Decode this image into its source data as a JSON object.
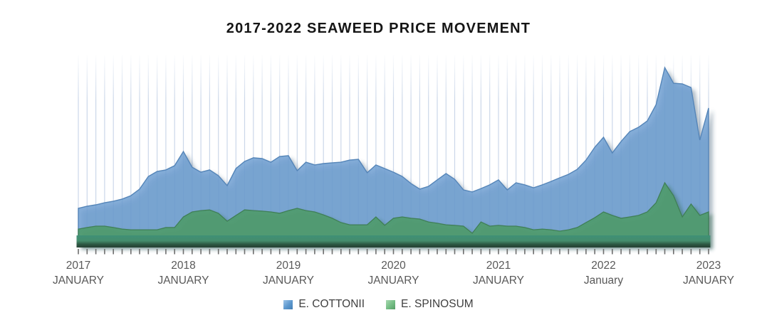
{
  "chart_data": {
    "type": "area",
    "style": "3d-area-overlapped",
    "title": "2017-2022 SEAWEED PRICE MOVEMENT",
    "x_axis": {
      "unit": "month",
      "start": "2017-01",
      "end": "2023-01",
      "n_points": 73,
      "ticks": [
        {
          "index": 0,
          "year": "2017",
          "month": "JANUARY"
        },
        {
          "index": 12,
          "year": "2018",
          "month": "JANUARY"
        },
        {
          "index": 24,
          "year": "2019",
          "month": "JANUARY"
        },
        {
          "index": 36,
          "year": "2020",
          "month": "JANUARY"
        },
        {
          "index": 48,
          "year": "2021",
          "month": "JANUARY"
        },
        {
          "index": 60,
          "year": "2022",
          "month": "January"
        },
        {
          "index": 72,
          "year": "2023",
          "month": "JANUARY"
        }
      ]
    },
    "y_axis": {
      "visible": false,
      "ylim": [
        0,
        100
      ],
      "note": "no value axis shown; values are relative price index estimated from pixel heights"
    },
    "gridlines": {
      "vertical": "monthly",
      "horizontal": false
    },
    "legend": {
      "position": "bottom",
      "items": [
        "E. COTTONII",
        "E. SPINOSUM"
      ]
    },
    "series": [
      {
        "name": "E. COTTONII",
        "color": "#6D9DD1",
        "values": [
          19.3,
          20.4,
          21.1,
          22.2,
          23,
          24.1,
          25.9,
          29.3,
          35.9,
          38.5,
          39.3,
          41.5,
          48.9,
          40.7,
          38.1,
          39.3,
          36.3,
          31.1,
          40,
          43.7,
          45.6,
          45.2,
          43.3,
          46.3,
          46.7,
          38.9,
          43.3,
          41.9,
          42.6,
          43,
          43.3,
          44.4,
          44.8,
          37.8,
          41.9,
          40,
          38.1,
          35.9,
          32.2,
          29.3,
          30.7,
          34.1,
          37.4,
          34.4,
          28.9,
          27.8,
          29.6,
          31.5,
          34.1,
          28.9,
          32.6,
          31.5,
          30,
          31.5,
          33.3,
          35.2,
          37,
          39.6,
          44.4,
          51.1,
          56.3,
          48.1,
          54.1,
          59.3,
          61.5,
          64.8,
          73.3,
          92.6,
          84.4,
          84.1,
          82.2,
          54.8,
          71.5
        ]
      },
      {
        "name": "E. SPINOSUM",
        "color": "#4F9B6E",
        "values": [
          8.5,
          9.3,
          10,
          10,
          9.3,
          8.5,
          8.1,
          8.1,
          8.1,
          8.1,
          9.3,
          9.3,
          14.8,
          17.4,
          18.1,
          18.5,
          16.7,
          12.6,
          15.6,
          18.5,
          18.1,
          17.8,
          17.4,
          16.7,
          18.1,
          19.3,
          18.1,
          17.4,
          15.9,
          14.1,
          11.9,
          10.7,
          10.7,
          10.7,
          14.8,
          10.4,
          14.1,
          14.8,
          14.1,
          13.7,
          12.2,
          11.5,
          10.7,
          10.4,
          10,
          6.3,
          12.2,
          10,
          10.4,
          10,
          10,
          9.3,
          8.1,
          8.5,
          8.1,
          7.4,
          8.1,
          9.3,
          11.9,
          14.4,
          17.4,
          15.6,
          14.1,
          14.8,
          15.6,
          17.4,
          22.2,
          32.6,
          25.9,
          14.8,
          21.5,
          15.6,
          17.4
        ]
      }
    ]
  },
  "colors": {
    "cottonii_fill": "#6D9DD1",
    "cottonii_edge": "#5585B8",
    "spinosum_fill": "#4F9B6E",
    "spinosum_edge": "#3F7F56",
    "gridline": "#CBD7E9",
    "floor_top": "#3E9077",
    "floor_mid": "#448C6C",
    "floor_dark": "#2C5843",
    "floor_base": "#203B2D",
    "tick": "#6E6E6E",
    "axis_label": "#595959",
    "title_text": "#151515",
    "legend_text": "#404040",
    "legend_swatch_blue": "#5B97CE",
    "legend_swatch_green": "#74BD84"
  },
  "legend": {
    "items": [
      {
        "label": "E. COTTONII"
      },
      {
        "label": "E. SPINOSUM"
      }
    ]
  }
}
